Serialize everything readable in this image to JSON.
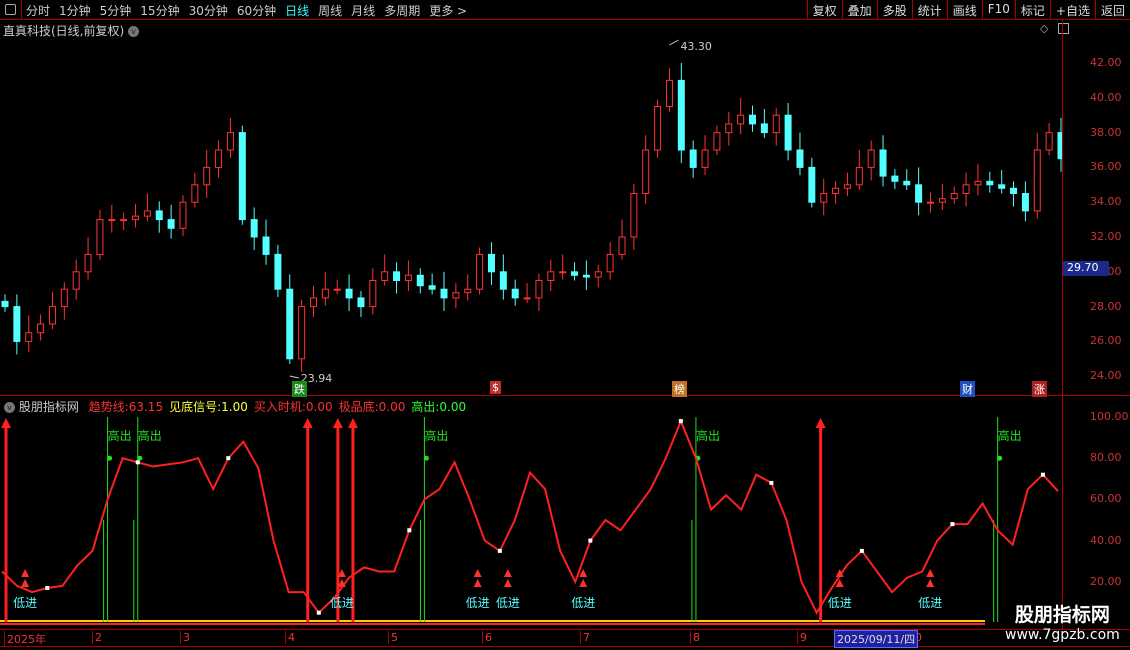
{
  "topbar": {
    "periods": [
      "分时",
      "1分钟",
      "5分钟",
      "15分钟",
      "30分钟",
      "60分钟",
      "日线",
      "周线",
      "月线",
      "多周期",
      "更多 >"
    ],
    "active": "日线",
    "buttons": [
      "复权",
      "叠加",
      "多股",
      "统计",
      "画线",
      "F10",
      "标记",
      "+自选",
      "返回"
    ]
  },
  "stock": {
    "title": "直真科技(日线,前复权)",
    "high_label": "43.30",
    "low_label": "23.94",
    "current_price": "29.70"
  },
  "price_axis": [
    "42.00",
    "40.00",
    "38.00",
    "36.00",
    "34.00",
    "32.00",
    "30.00",
    "28.00",
    "26.00",
    "24.00"
  ],
  "markers": [
    {
      "t": "跌",
      "c": "#1a8a1a"
    },
    {
      "t": "$",
      "c": "#c03030"
    },
    {
      "t": "榜",
      "c": "#c07020"
    },
    {
      "t": "财",
      "c": "#2050c0"
    },
    {
      "t": "涨",
      "c": "#b02020"
    }
  ],
  "indicator": {
    "name": "股朋指标网",
    "fields": [
      {
        "label": "趋势线:",
        "value": "63.15",
        "color": "#ff3030"
      },
      {
        "label": "见底信号:",
        "value": "1.00",
        "color": "#ffff40"
      },
      {
        "label": "买入时机:",
        "value": "0.00",
        "color": "#ff3030"
      },
      {
        "label": "极品底:",
        "value": "0.00",
        "color": "#ff3030"
      },
      {
        "label": "高出:",
        "value": "0.00",
        "color": "#30ff30"
      }
    ],
    "axis": [
      "100.00",
      "80.00",
      "60.00",
      "40.00",
      "20.00"
    ],
    "high_text": "高出",
    "low_text": "低进"
  },
  "dates": [
    "2025年",
    "2",
    "3",
    "4",
    "5",
    "6",
    "7",
    "8",
    "9",
    "0"
  ],
  "cursor_date": "2025/09/11/四",
  "watermark": {
    "name": "股朋指标网",
    "url": "www.7gpzb.com"
  },
  "colors": {
    "up": "#ff3232",
    "down": "#54ffff",
    "trend": "#ff2020",
    "high": "#20e020"
  },
  "closes": [
    28,
    26,
    26.5,
    27,
    28,
    29,
    30,
    31,
    33,
    33,
    33,
    33.2,
    33.5,
    33,
    32.5,
    34,
    35,
    36,
    37,
    38,
    33,
    32,
    31,
    29,
    25,
    28,
    28.5,
    29,
    29,
    28.5,
    28,
    29.5,
    30,
    29.5,
    29.8,
    29.2,
    29,
    28.5,
    28.8,
    29,
    31,
    30,
    29,
    28.5,
    28.5,
    29.5,
    30,
    30,
    29.8,
    29.7,
    30,
    31,
    32,
    34.5,
    37,
    39.5,
    41,
    37,
    36,
    37,
    38,
    38.5,
    39,
    38.5,
    38,
    39,
    37,
    36,
    34,
    34.5,
    34.8,
    35,
    36,
    37,
    35.5,
    35.2,
    35,
    34,
    34,
    34.2,
    34.5,
    35,
    35.2,
    35,
    34.8,
    34.5,
    33.5,
    37,
    38,
    36.5
  ],
  "trend": [
    25,
    18,
    15,
    17,
    18,
    28,
    35,
    60,
    80,
    78,
    76,
    77,
    78,
    80,
    65,
    80,
    88,
    75,
    40,
    15,
    15,
    5,
    12,
    22,
    27,
    25,
    25,
    45,
    60,
    65,
    78,
    60,
    40,
    35,
    50,
    73,
    65,
    35,
    20,
    40,
    50,
    45,
    55,
    65,
    80,
    98,
    80,
    55,
    62,
    55,
    72,
    68,
    50,
    20,
    5,
    17,
    28,
    35,
    25,
    15,
    22,
    25,
    40,
    48,
    48,
    58,
    45,
    38,
    65,
    72,
    64
  ],
  "high_signals": [
    7,
    9,
    28,
    46,
    66
  ],
  "buy_arrows": [
    0,
    20,
    22,
    23,
    54
  ],
  "low_signals": [
    1,
    22,
    31,
    33,
    38,
    55,
    61
  ]
}
